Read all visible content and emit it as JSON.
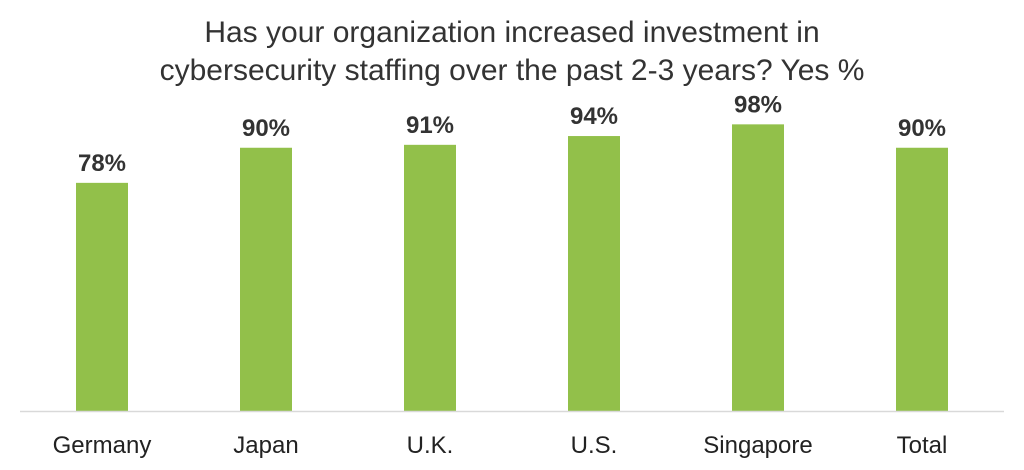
{
  "chart_data": {
    "type": "bar",
    "title": [
      "Has your organization increased investment in",
      "cybersecurity staffing over the past 2-3 years? Yes %"
    ],
    "categories": [
      "Germany",
      "Japan",
      "U.K.",
      "U.S.",
      "Singapore",
      "Total"
    ],
    "values": [
      78,
      90,
      91,
      94,
      98,
      90
    ],
    "data_labels": [
      "78%",
      "90%",
      "91%",
      "94%",
      "98%",
      "90%"
    ],
    "ylim": [
      0,
      100
    ],
    "grid": false,
    "legend": "none",
    "bar_color": "#92C04A",
    "axis_color": "#D9D9D9"
  }
}
